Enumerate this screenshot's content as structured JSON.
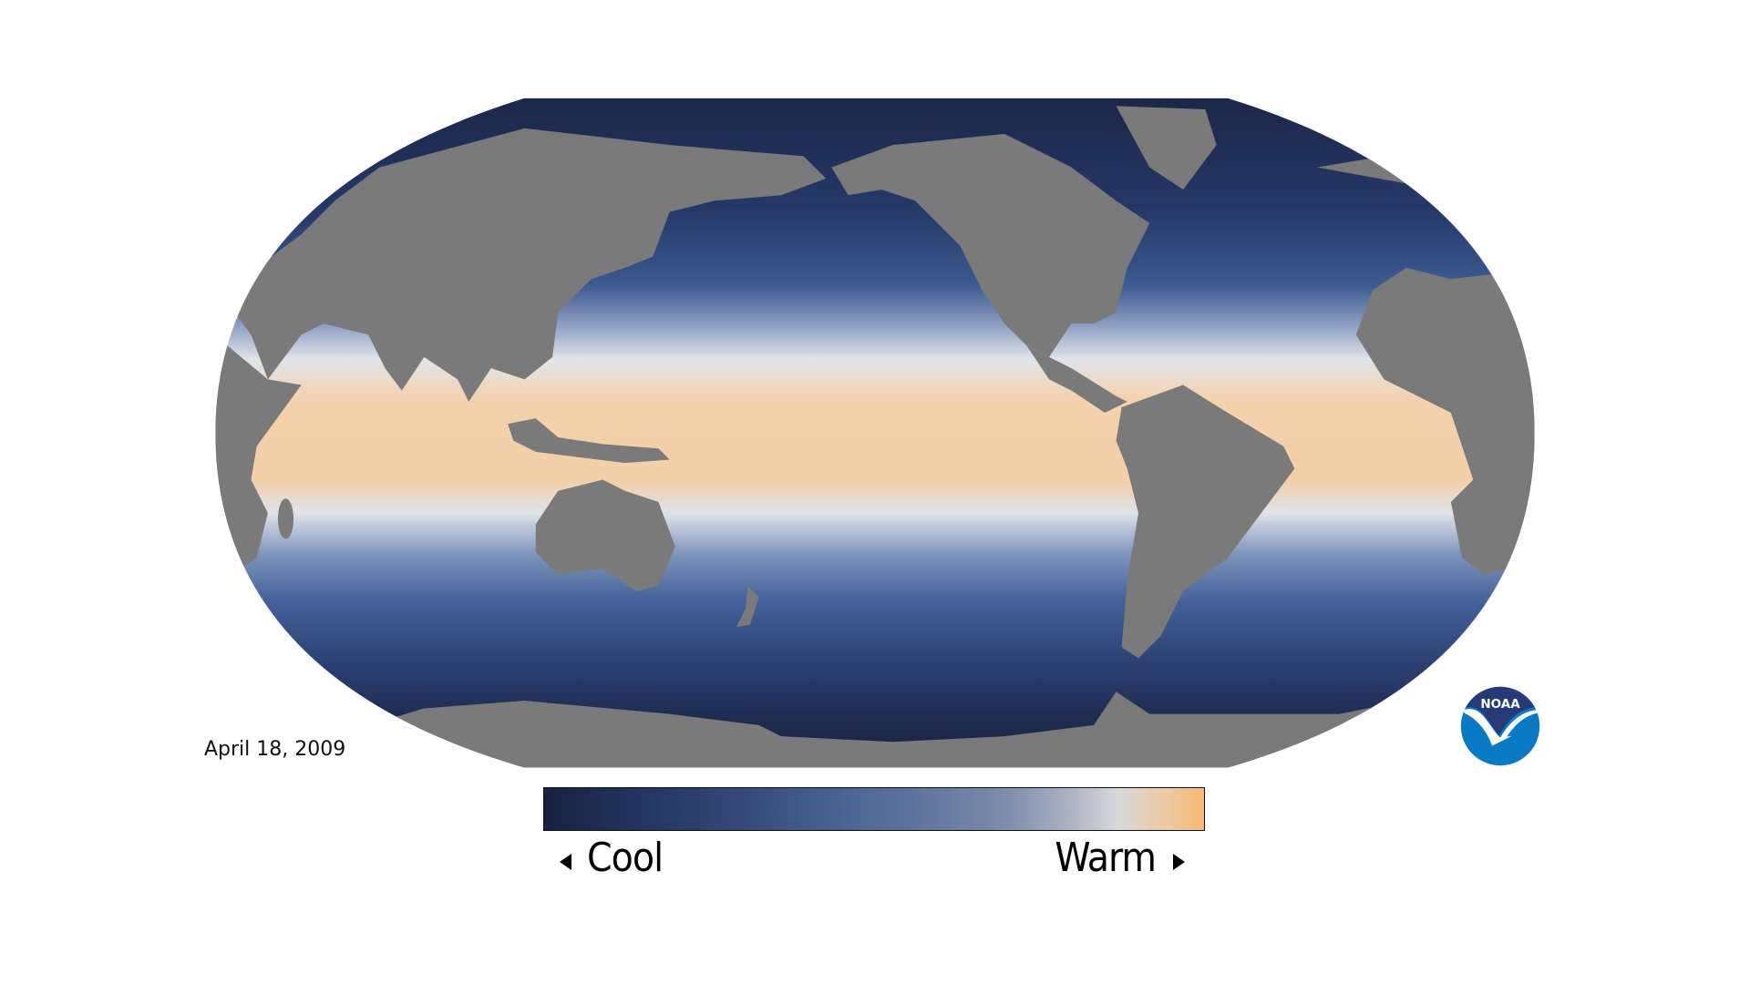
{
  "map": {
    "date": "April 18, 2009",
    "ocean_colors": [
      "#1b2748",
      "#2c4478",
      "#5a76a6",
      "#dfe3ea",
      "#f5d0a8"
    ],
    "land_color": "#7a7a7a"
  },
  "legend": {
    "cool_label": "Cool",
    "warm_label": "Warm",
    "cool_icon": "triangle-left-icon",
    "warm_icon": "triangle-right-icon",
    "colors": [
      "#18223f",
      "#465e90",
      "#7c8cab",
      "#d9d9db",
      "#f8bb72"
    ]
  },
  "logo": {
    "text": "NOAA",
    "colors": [
      "#263a78",
      "#0a7ac4"
    ]
  }
}
